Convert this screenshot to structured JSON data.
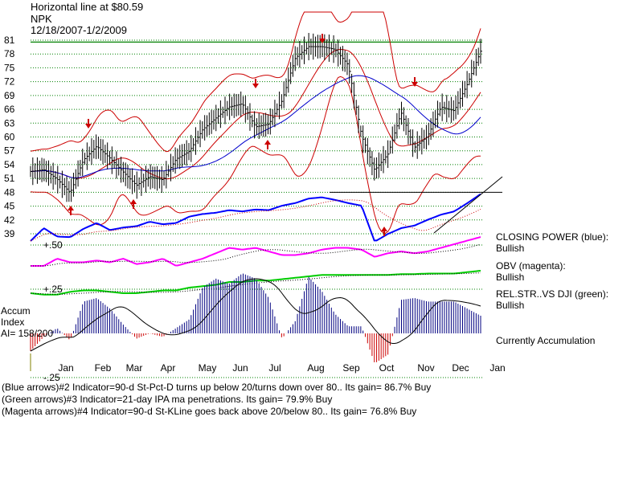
{
  "header": {
    "line1": "Horizontal line at $80.59",
    "line2": "NPK",
    "line3": "12/18/2007-1/2/2009"
  },
  "right_panel": {
    "cp_title": "CLOSING POWER (blue):",
    "cp_value": "Bullish",
    "obv_title": "OBV (magenta):",
    "obv_value": "Bullish",
    "rel_title": "REL.STR..VS DJI (green):",
    "rel_value": "Bullish",
    "accum_status": "Currently Accumulation"
  },
  "accum_label": {
    "line1": "Accum",
    "line2": "Index",
    "line3": "AI= 158/200"
  },
  "footer": {
    "line1": "(Blue arrows)#2 Indicator=90-d St-Pct-D turns up below 20/turns down over 80..  Its gain= 86.7% Buy",
    "line2": "(Green arrows)#3 Indicator=21-day IPA ma penetrations.  Its gain= 79.9% Buy",
    "line3": "(Magenta arrows)#4 Indicator=90-d St-KLine goes back above 20/below 80..  Its gain= 76.8% Buy"
  },
  "chart_data": {
    "type": "line",
    "title": "NPK",
    "horizontal_line": 80.59,
    "price_axis": {
      "ticks": [
        81,
        78,
        75,
        72,
        69,
        66,
        63,
        60,
        57,
        54,
        51,
        48,
        45,
        42,
        39
      ]
    },
    "accum_axis": {
      "ticks": [
        "+.50",
        "+.25",
        "-.25"
      ],
      "tick_values": [
        0.5,
        0.25,
        -0.25
      ]
    },
    "x_labels": [
      "Jan",
      "Feb",
      "Mar",
      "Apr",
      "May",
      "Jun",
      "Jul",
      "Aug",
      "Sep",
      "Oct",
      "Nov",
      "Dec",
      "Jan"
    ],
    "series": [
      {
        "name": "price",
        "values": [
          52.5,
          52.9,
          50.9,
          47.9,
          55.0,
          58.0,
          55.4,
          52.4,
          49.5,
          51.4,
          50.7,
          55.2,
          56.9,
          61.6,
          64.1,
          66.5,
          67.2,
          62.2,
          62.8,
          67.9,
          77.1,
          79.6,
          79.6,
          79.0,
          75.6,
          60.4,
          52.8,
          56.3,
          65.3,
          57.7,
          60.2,
          66.5,
          65.7,
          71.5,
          78.6
        ]
      },
      {
        "name": "CLOSING POWER (blue)",
        "values": [
          0.25,
          0.45,
          0.32,
          0.31,
          0.44,
          0.53,
          0.42,
          0.46,
          0.48,
          0.55,
          0.51,
          0.53,
          0.63,
          0.67,
          0.69,
          0.73,
          0.71,
          0.74,
          0.73,
          0.8,
          0.84,
          0.91,
          0.93,
          0.89,
          0.84,
          0.8,
          0.24,
          0.36,
          0.45,
          0.49,
          0.58,
          0.66,
          0.71,
          0.84,
          0.98
        ]
      },
      {
        "name": "OBV (magenta)",
        "values": [
          0.2,
          0.2,
          0.4,
          0.3,
          0.3,
          0.35,
          0.3,
          0.4,
          0.25,
          0.3,
          0.4,
          0.2,
          0.3,
          0.4,
          0.55,
          0.7,
          0.65,
          0.7,
          0.6,
          0.5,
          0.5,
          0.55,
          0.65,
          0.7,
          0.7,
          0.65,
          0.45,
          0.55,
          0.6,
          0.55,
          0.6,
          0.7,
          0.8,
          0.9,
          1.0
        ]
      },
      {
        "name": "REL.STR..VS DJI (green)",
        "values": [
          0.2,
          0.15,
          0.15,
          0.25,
          0.3,
          0.3,
          0.25,
          0.2,
          0.2,
          0.25,
          0.3,
          0.3,
          0.4,
          0.45,
          0.5,
          0.6,
          0.6,
          0.65,
          0.65,
          0.7,
          0.75,
          0.8,
          0.85,
          0.85,
          0.85,
          0.85,
          0.85,
          0.85,
          0.88,
          0.88,
          0.9,
          0.9,
          0.9,
          0.95,
          1.0
        ]
      },
      {
        "name": "Accum Index",
        "values": [
          -0.1,
          -0.02,
          0.03,
          -0.04,
          0.18,
          0.2,
          0.14,
          0.05,
          -0.03,
          0.0,
          -0.02,
          0.03,
          0.08,
          0.26,
          0.31,
          0.28,
          0.34,
          0.31,
          0.2,
          -0.03,
          0.07,
          0.32,
          0.24,
          0.11,
          0.04,
          0.04,
          -0.17,
          -0.12,
          0.19,
          0.2,
          0.18,
          0.18,
          0.18,
          0.14,
          0.1
        ]
      }
    ]
  }
}
